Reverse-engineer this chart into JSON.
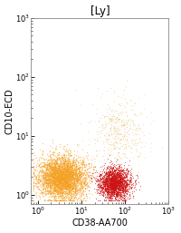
{
  "title": "[Ly]",
  "xlabel": "CD38-AA700",
  "ylabel": "CD10-ECD",
  "xlim": [
    0.7,
    1000
  ],
  "ylim": [
    0.7,
    1000
  ],
  "xticks": [
    1,
    10,
    100,
    1000
  ],
  "yticks": [
    1,
    10,
    100,
    1000
  ],
  "background_color": "#ffffff",
  "title_fontsize": 8.5,
  "label_fontsize": 7,
  "tick_fontsize": 6,
  "orange_cluster": {
    "x_log_mean": 0.55,
    "x_log_std": 0.28,
    "y_log_mean": 0.3,
    "y_log_std": 0.18,
    "n": 3500,
    "color": "#F5A020"
  },
  "red_cluster": {
    "x_log_mean": 1.75,
    "x_log_std": 0.18,
    "y_log_mean": 0.2,
    "y_log_std": 0.14,
    "n": 2200,
    "color": "#CC1111"
  },
  "sparse_cluster": {
    "x_log_mean": 1.85,
    "x_log_std": 0.3,
    "y_log_mean": 1.05,
    "y_log_std": 0.3,
    "n": 500,
    "color": "#E8C070"
  }
}
